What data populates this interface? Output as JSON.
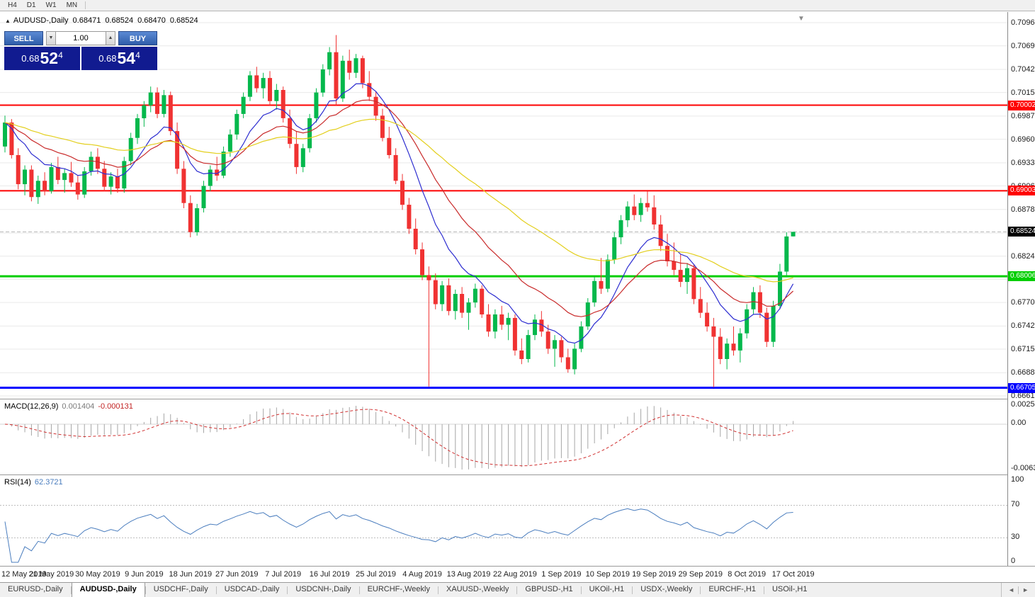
{
  "ui": {
    "periods": [
      "H4",
      "D1",
      "W1",
      "MN"
    ],
    "title": {
      "collapse_icon": "▲",
      "symbol": "AUDUSD-,Daily",
      "open": "0.68471",
      "high": "0.68524",
      "low": "0.68470",
      "close": "0.68524"
    },
    "chart": {
      "shift_marker_icon": "▼"
    },
    "one_click": {
      "sell_label": "SELL",
      "buy_label": "BUY",
      "volume": "1.00",
      "spin_down": "▼",
      "spin_up": "▲",
      "sell_price": {
        "prefix": "0.68",
        "big": "52",
        "sup": "4"
      },
      "buy_price": {
        "prefix": "0.68",
        "big": "54",
        "sup": "4"
      }
    },
    "macd_label": {
      "name": "MACD(12,26,9)",
      "main_value": "0.001404",
      "signal_value": "-0.000131"
    },
    "rsi_label": {
      "name": "RSI(14)",
      "value": "62.3721"
    },
    "tabs": {
      "items": [
        {
          "label": "EURUSD-,Daily",
          "active": false
        },
        {
          "label": "AUDUSD-,Daily",
          "active": true
        },
        {
          "label": "USDCHF-,Daily",
          "active": false
        },
        {
          "label": "USDCAD-,Daily",
          "active": false
        },
        {
          "label": "USDCNH-,Daily",
          "active": false
        },
        {
          "label": "EURCHF-,Weekly",
          "active": false
        },
        {
          "label": "XAUUSD-,Weekly",
          "active": false
        },
        {
          "label": "GBPUSD-,H1",
          "active": false
        },
        {
          "label": "UKOil-,H1",
          "active": false
        },
        {
          "label": "USDX-,Weekly",
          "active": false
        },
        {
          "label": "EURCHF-,H1",
          "active": false
        },
        {
          "label": "USOil-,H1",
          "active": false
        }
      ],
      "scroll_left": "◄",
      "scroll_right": "►"
    },
    "colors": {
      "bull": "#04b84c",
      "bear": "#f03232",
      "grid": "#e9e9e9",
      "bid_line": "#b8b8b8",
      "macd_hist": "#a6a6a6",
      "macd_signal": "#d03030",
      "rsi_line": "#4a7dbe",
      "current_tag": "#000000",
      "one_click_button": "#3e72c6",
      "one_click_panel": "#111b90"
    }
  },
  "chart_data": {
    "type": "candlestick",
    "symbol": "AUDUSD-,Daily",
    "current_price": 0.68524,
    "current_price_label": "0.68524",
    "price_range": {
      "top": 0.70965,
      "bottom": 0.6661
    },
    "price_ticks": [
      "0.70965",
      "0.70695",
      "0.70420",
      "0.70150",
      "0.69875",
      "0.69605",
      "0.69330",
      "0.69060",
      "0.68785",
      "0.68510",
      "0.68240",
      "0.67970",
      "0.67700",
      "0.67425",
      "0.67155",
      "0.66880",
      "0.66610"
    ],
    "levels": [
      {
        "value": 0.70002,
        "label": "0.70002",
        "color": "#fe0000",
        "width": 2,
        "name": "resistance-line-0.70002"
      },
      {
        "value": 0.69003,
        "label": "0.69003",
        "color": "#fe0000",
        "width": 2,
        "name": "resistance-line-0.69003"
      },
      {
        "value": 0.68006,
        "label": "0.68006",
        "color": "#00ce00",
        "width": 3,
        "name": "support-line-0.68006"
      },
      {
        "value": 0.66705,
        "label": "0.66705",
        "color": "#0000ff",
        "width": 3,
        "name": "support-line-0.66705"
      }
    ],
    "moving_averages": [
      {
        "period": 10,
        "type": "ema",
        "color": "#2d2dd0",
        "name": "fast-ma"
      },
      {
        "period": 21,
        "type": "ema",
        "color": "#c92b2b",
        "name": "mid-ma"
      },
      {
        "period": 50,
        "type": "ema",
        "color": "#e3cf1d",
        "name": "slow-ma"
      }
    ],
    "indicators": {
      "macd": {
        "fast": 12,
        "slow": 26,
        "signal": 9,
        "scale_max": 0.002574,
        "scale_min": -0.006326,
        "axis": [
          {
            "label": "0.002574",
            "value": 0.002574
          },
          {
            "label": "0.00",
            "value": 0
          },
          {
            "label": "-0.006326",
            "value": -0.006326
          }
        ]
      },
      "rsi": {
        "period": 14,
        "levels": [
          70,
          30
        ],
        "axis": [
          "100",
          "70",
          "30",
          "0"
        ]
      }
    },
    "date_labels": [
      "12 May 2019",
      "21 May 2019",
      "30 May 2019",
      "9 Jun 2019",
      "18 Jun 2019",
      "27 Jun 2019",
      "7 Jul 2019",
      "16 Jul 2019",
      "25 Jul 2019",
      "4 Aug 2019",
      "13 Aug 2019",
      "22 Aug 2019",
      "1 Sep 2019",
      "10 Sep 2019",
      "19 Sep 2019",
      "29 Sep 2019",
      "8 Oct 2019",
      "17 Oct 2019"
    ],
    "label_every": 7,
    "candles": [
      [
        0.6952,
        0.6988,
        0.6945,
        0.698
      ],
      [
        0.698,
        0.6984,
        0.6938,
        0.6942
      ],
      [
        0.6942,
        0.695,
        0.6902,
        0.6908
      ],
      [
        0.6908,
        0.693,
        0.6895,
        0.6925
      ],
      [
        0.6925,
        0.693,
        0.6888,
        0.6893
      ],
      [
        0.6893,
        0.6918,
        0.6885,
        0.6912
      ],
      [
        0.6912,
        0.6922,
        0.6895,
        0.69
      ],
      [
        0.69,
        0.6933,
        0.6897,
        0.6928
      ],
      [
        0.6928,
        0.694,
        0.6908,
        0.6913
      ],
      [
        0.6913,
        0.6926,
        0.6898,
        0.6921
      ],
      [
        0.6921,
        0.6934,
        0.6905,
        0.691
      ],
      [
        0.691,
        0.6918,
        0.689,
        0.6896
      ],
      [
        0.6896,
        0.6928,
        0.6892,
        0.6923
      ],
      [
        0.6923,
        0.6946,
        0.6918,
        0.694
      ],
      [
        0.694,
        0.695,
        0.692,
        0.6926
      ],
      [
        0.6926,
        0.6935,
        0.69,
        0.6905
      ],
      [
        0.6905,
        0.6922,
        0.6896,
        0.6917
      ],
      [
        0.6917,
        0.6926,
        0.6898,
        0.6903
      ],
      [
        0.6903,
        0.694,
        0.6898,
        0.6935
      ],
      [
        0.6935,
        0.6968,
        0.693,
        0.6962
      ],
      [
        0.6962,
        0.699,
        0.6955,
        0.6985
      ],
      [
        0.6985,
        0.7005,
        0.6975,
        0.7
      ],
      [
        0.7,
        0.7022,
        0.6992,
        0.7015
      ],
      [
        0.7015,
        0.7021,
        0.6985,
        0.699
      ],
      [
        0.699,
        0.7018,
        0.6986,
        0.7012
      ],
      [
        0.7012,
        0.7016,
        0.6965,
        0.697
      ],
      [
        0.697,
        0.698,
        0.692,
        0.6926
      ],
      [
        0.6926,
        0.6935,
        0.688,
        0.6886
      ],
      [
        0.6886,
        0.6895,
        0.6846,
        0.6852
      ],
      [
        0.6852,
        0.6885,
        0.6848,
        0.688
      ],
      [
        0.688,
        0.6912,
        0.6875,
        0.6906
      ],
      [
        0.6906,
        0.693,
        0.69,
        0.6925
      ],
      [
        0.6925,
        0.694,
        0.6912,
        0.6918
      ],
      [
        0.6918,
        0.6952,
        0.6915,
        0.6946
      ],
      [
        0.6946,
        0.6972,
        0.694,
        0.6966
      ],
      [
        0.6966,
        0.6995,
        0.696,
        0.699
      ],
      [
        0.699,
        0.7015,
        0.6985,
        0.701
      ],
      [
        0.701,
        0.704,
        0.7005,
        0.7035
      ],
      [
        0.7035,
        0.7045,
        0.7015,
        0.702
      ],
      [
        0.702,
        0.7038,
        0.7008,
        0.7032
      ],
      [
        0.7032,
        0.704,
        0.7,
        0.7005
      ],
      [
        0.7005,
        0.7025,
        0.6995,
        0.7018
      ],
      [
        0.7018,
        0.7022,
        0.698,
        0.6985
      ],
      [
        0.6985,
        0.6995,
        0.695,
        0.6955
      ],
      [
        0.6955,
        0.697,
        0.692,
        0.6928
      ],
      [
        0.6928,
        0.6955,
        0.6922,
        0.695
      ],
      [
        0.695,
        0.699,
        0.6945,
        0.6985
      ],
      [
        0.6985,
        0.702,
        0.698,
        0.7015
      ],
      [
        0.7015,
        0.7048,
        0.701,
        0.7042
      ],
      [
        0.7042,
        0.7068,
        0.7035,
        0.7062
      ],
      [
        0.7062,
        0.7082,
        0.7,
        0.7008
      ],
      [
        0.7008,
        0.7058,
        0.7004,
        0.7052
      ],
      [
        0.7052,
        0.7065,
        0.703,
        0.7038
      ],
      [
        0.7038,
        0.706,
        0.7032,
        0.7055
      ],
      [
        0.7055,
        0.7058,
        0.702,
        0.7026
      ],
      [
        0.7026,
        0.704,
        0.7005,
        0.701
      ],
      [
        0.701,
        0.7016,
        0.6982,
        0.6988
      ],
      [
        0.6988,
        0.6996,
        0.6958,
        0.6962
      ],
      [
        0.6962,
        0.6975,
        0.6938,
        0.6942
      ],
      [
        0.6942,
        0.695,
        0.6908,
        0.6912
      ],
      [
        0.6912,
        0.692,
        0.6878,
        0.6884
      ],
      [
        0.6884,
        0.6892,
        0.685,
        0.6856
      ],
      [
        0.6856,
        0.6868,
        0.6826,
        0.6832
      ],
      [
        0.6832,
        0.684,
        0.6796,
        0.6802
      ],
      [
        0.6802,
        0.6812,
        0.6672,
        0.6796
      ],
      [
        0.6796,
        0.6804,
        0.6762,
        0.6768
      ],
      [
        0.6768,
        0.6795,
        0.676,
        0.679
      ],
      [
        0.679,
        0.6798,
        0.6755,
        0.676
      ],
      [
        0.676,
        0.6785,
        0.675,
        0.678
      ],
      [
        0.678,
        0.6788,
        0.6752,
        0.6758
      ],
      [
        0.6758,
        0.6775,
        0.6738,
        0.677
      ],
      [
        0.677,
        0.6792,
        0.6764,
        0.6786
      ],
      [
        0.6786,
        0.679,
        0.6752,
        0.6756
      ],
      [
        0.6756,
        0.6768,
        0.673,
        0.6736
      ],
      [
        0.6736,
        0.6762,
        0.6728,
        0.6756
      ],
      [
        0.6756,
        0.6766,
        0.6738,
        0.6744
      ],
      [
        0.6744,
        0.6758,
        0.6726,
        0.6752
      ],
      [
        0.6752,
        0.6756,
        0.6708,
        0.6714
      ],
      [
        0.6714,
        0.6728,
        0.6698,
        0.6704
      ],
      [
        0.6704,
        0.6738,
        0.67,
        0.6732
      ],
      [
        0.6732,
        0.6756,
        0.6726,
        0.675
      ],
      [
        0.675,
        0.676,
        0.673,
        0.6736
      ],
      [
        0.6736,
        0.6744,
        0.671,
        0.6716
      ],
      [
        0.6716,
        0.6732,
        0.6695,
        0.6726
      ],
      [
        0.6726,
        0.673,
        0.67,
        0.6706
      ],
      [
        0.6706,
        0.6716,
        0.6688,
        0.6692
      ],
      [
        0.6692,
        0.6722,
        0.6686,
        0.6716
      ],
      [
        0.6716,
        0.6748,
        0.6712,
        0.6742
      ],
      [
        0.6742,
        0.6775,
        0.6738,
        0.677
      ],
      [
        0.677,
        0.68,
        0.6765,
        0.6795
      ],
      [
        0.6795,
        0.6822,
        0.678,
        0.6786
      ],
      [
        0.6786,
        0.6826,
        0.6782,
        0.682
      ],
      [
        0.682,
        0.6852,
        0.6815,
        0.6846
      ],
      [
        0.6846,
        0.6872,
        0.6838,
        0.6866
      ],
      [
        0.6866,
        0.6888,
        0.6858,
        0.6882
      ],
      [
        0.6882,
        0.6896,
        0.6866,
        0.6872
      ],
      [
        0.6872,
        0.6892,
        0.6864,
        0.6886
      ],
      [
        0.6886,
        0.69,
        0.6876,
        0.6881
      ],
      [
        0.6881,
        0.6895,
        0.6855,
        0.6861
      ],
      [
        0.6861,
        0.6872,
        0.683,
        0.6836
      ],
      [
        0.6836,
        0.685,
        0.6812,
        0.6818
      ],
      [
        0.6818,
        0.684,
        0.6802,
        0.6808
      ],
      [
        0.6808,
        0.6826,
        0.6788,
        0.6794
      ],
      [
        0.6794,
        0.6816,
        0.678,
        0.681
      ],
      [
        0.681,
        0.6814,
        0.6768,
        0.6774
      ],
      [
        0.6774,
        0.6788,
        0.6752,
        0.6758
      ],
      [
        0.6758,
        0.677,
        0.6736,
        0.6742
      ],
      [
        0.6742,
        0.6752,
        0.6671,
        0.673
      ],
      [
        0.673,
        0.674,
        0.6698,
        0.6704
      ],
      [
        0.6704,
        0.6728,
        0.6692,
        0.6722
      ],
      [
        0.6722,
        0.6742,
        0.6708,
        0.6714
      ],
      [
        0.6714,
        0.674,
        0.67,
        0.6734
      ],
      [
        0.6734,
        0.6768,
        0.6728,
        0.6762
      ],
      [
        0.6762,
        0.6788,
        0.6756,
        0.6782
      ],
      [
        0.6782,
        0.679,
        0.6752,
        0.6758
      ],
      [
        0.6758,
        0.6764,
        0.6718,
        0.6724
      ],
      [
        0.6724,
        0.6772,
        0.6718,
        0.6766
      ],
      [
        0.6766,
        0.6815,
        0.6762,
        0.6806
      ],
      [
        0.6806,
        0.6852,
        0.68,
        0.6847
      ],
      [
        0.68471,
        0.68524,
        0.6847,
        0.68524
      ]
    ]
  }
}
